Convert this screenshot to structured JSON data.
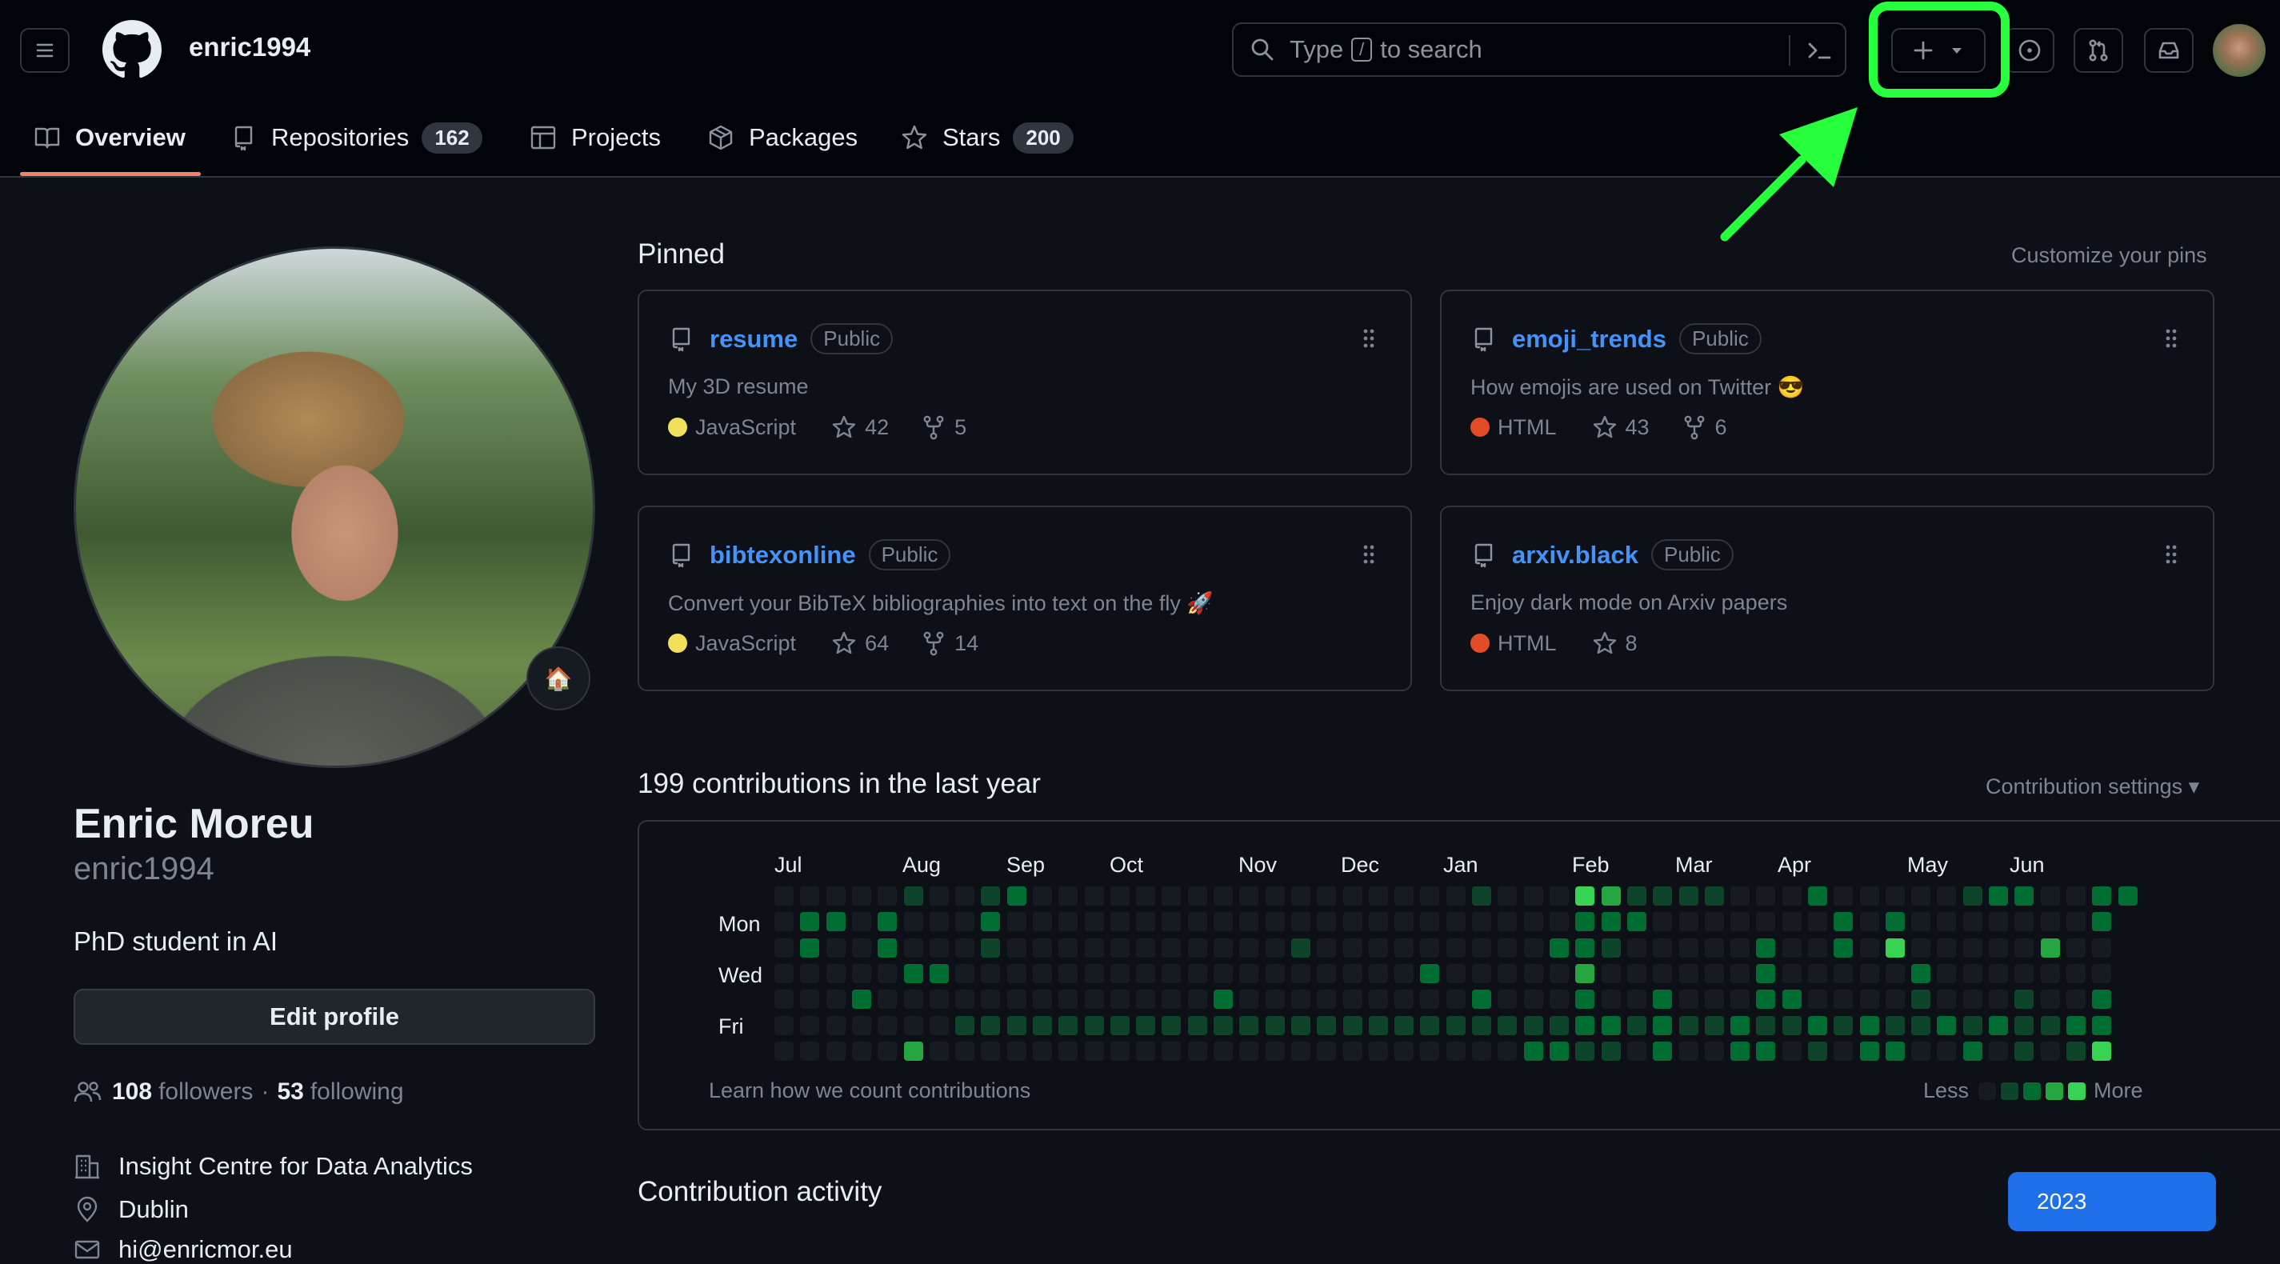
{
  "header": {
    "owner": "enric1994",
    "search_prefix": "Type",
    "search_key": "/",
    "search_suffix": "to search"
  },
  "tabs": [
    {
      "label": "Overview"
    },
    {
      "label": "Repositories",
      "count": "162"
    },
    {
      "label": "Projects"
    },
    {
      "label": "Packages"
    },
    {
      "label": "Stars",
      "count": "200"
    }
  ],
  "profile": {
    "full_name": "Enric Moreu",
    "login": "enric1994",
    "bio": "PhD student in AI",
    "status_emoji": "🏠",
    "edit_button": "Edit profile",
    "followers_count": "108",
    "followers_label": "followers",
    "separator": "·",
    "following_count": "53",
    "following_label": "following",
    "organization": "Insight Centre for Data Analytics",
    "location": "Dublin",
    "email_partial": "hi@enricmor.eu"
  },
  "pinned": {
    "title": "Pinned",
    "customize": "Customize your pins",
    "items": [
      {
        "name": "resume",
        "visibility": "Public",
        "description": "My 3D resume",
        "language": "JavaScript",
        "language_color": "#f1e05a",
        "stars": "42",
        "forks": "5"
      },
      {
        "name": "emoji_trends",
        "visibility": "Public",
        "description": "How emojis are used on Twitter 😎",
        "language": "HTML",
        "language_color": "#e34c26",
        "stars": "43",
        "forks": "6"
      },
      {
        "name": "bibtexonline",
        "visibility": "Public",
        "description": "Convert your BibTeX bibliographies into text on the fly 🚀",
        "language": "JavaScript",
        "language_color": "#f1e05a",
        "stars": "64",
        "forks": "14"
      },
      {
        "name": "arxiv.black",
        "visibility": "Public",
        "description": "Enjoy dark mode on Arxiv papers",
        "language": "HTML",
        "language_color": "#e34c26",
        "stars": "8",
        "forks": null
      }
    ]
  },
  "contributions": {
    "title": "199 contributions in the last year",
    "settings": "Contribution settings ▾",
    "months": [
      "Jul",
      "Aug",
      "Sep",
      "Oct",
      "Nov",
      "Dec",
      "Jan",
      "Feb",
      "Mar",
      "Apr",
      "May",
      "Jun"
    ],
    "day_labels": [
      "Mon",
      "Wed",
      "Fri"
    ],
    "learn_link": "Learn how we count contributions",
    "legend_less": "Less",
    "legend_more": "More",
    "level_colors": [
      "#161b22",
      "#0e4429",
      "#006d32",
      "#26a641",
      "#39d353"
    ]
  },
  "activity": {
    "title": "Contribution activity",
    "year": "2023"
  },
  "annotation": {
    "highlight_color": "#28ff3c"
  }
}
